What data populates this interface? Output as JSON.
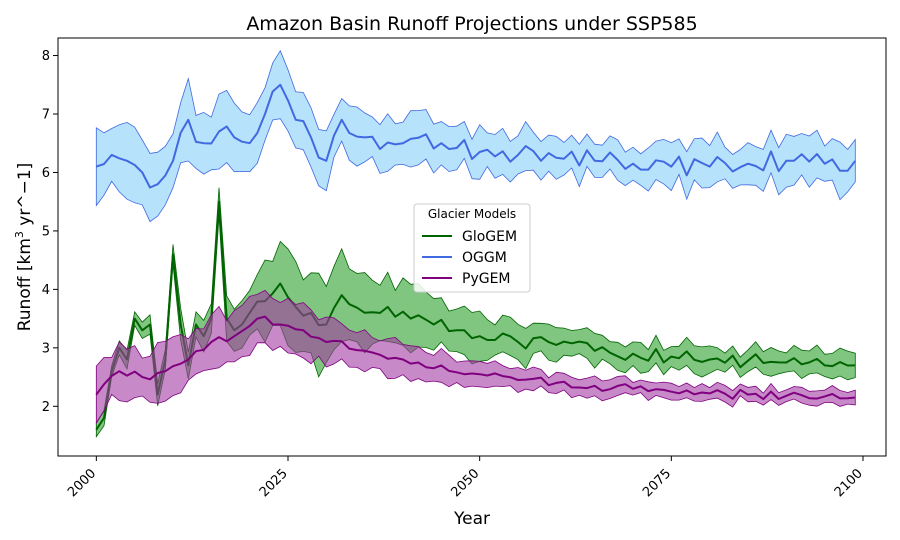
{
  "chart_data": {
    "type": "line",
    "title": "Amazon Basin Runoff Projections under SSP585",
    "xlabel": "Year",
    "ylabel_prefix": "Runoff [km",
    "ylabel_sup": "3",
    "ylabel_suffix": " yr^−1]",
    "xlim": [
      1995,
      2103
    ],
    "ylim": [
      1.15,
      8.3
    ],
    "xticks": [
      2000,
      2025,
      2050,
      2075,
      2100
    ],
    "xtick_labels": [
      "2000",
      "2025",
      "2050",
      "2075",
      "2100"
    ],
    "yticks": [
      2,
      3,
      4,
      5,
      6,
      7,
      8
    ],
    "ytick_labels": [
      "2",
      "3",
      "4",
      "5",
      "6",
      "7",
      "8"
    ],
    "grid": false,
    "legend": {
      "title": "Glacier Models",
      "placement": "center",
      "entries": [
        "GloGEM",
        "OGGM",
        "PyGEM"
      ]
    },
    "x_start": 2000,
    "x_end": 2099,
    "series": [
      {
        "name": "GloGEM",
        "color": "#006400",
        "fill": "#2ca02c",
        "keyframes": [
          [
            2000,
            1.6
          ],
          [
            2001,
            1.8
          ],
          [
            2002,
            2.6
          ],
          [
            2003,
            3.0
          ],
          [
            2004,
            2.8
          ],
          [
            2005,
            3.5
          ],
          [
            2006,
            3.3
          ],
          [
            2007,
            3.4
          ],
          [
            2008,
            2.2
          ],
          [
            2009,
            2.8
          ],
          [
            2010,
            4.6
          ],
          [
            2011,
            3.4
          ],
          [
            2012,
            2.7
          ],
          [
            2013,
            3.4
          ],
          [
            2014,
            3.2
          ],
          [
            2015,
            3.5
          ],
          [
            2016,
            5.5
          ],
          [
            2017,
            3.5
          ],
          [
            2018,
            3.3
          ],
          [
            2019,
            3.4
          ],
          [
            2020,
            3.6
          ],
          [
            2022,
            3.8
          ],
          [
            2024,
            4.1
          ],
          [
            2026,
            3.7
          ],
          [
            2028,
            3.6
          ],
          [
            2030,
            3.4
          ],
          [
            2032,
            3.9
          ],
          [
            2035,
            3.6
          ],
          [
            2038,
            3.7
          ],
          [
            2041,
            3.5
          ],
          [
            2044,
            3.4
          ],
          [
            2047,
            3.3
          ],
          [
            2050,
            3.2
          ],
          [
            2055,
            3.1
          ],
          [
            2060,
            3.05
          ],
          [
            2065,
            2.95
          ],
          [
            2070,
            2.9
          ],
          [
            2075,
            2.85
          ],
          [
            2080,
            2.8
          ],
          [
            2085,
            2.78
          ],
          [
            2090,
            2.75
          ],
          [
            2095,
            2.7
          ],
          [
            2099,
            2.7
          ]
        ],
        "spread": [
          [
            2000,
            0.1
          ],
          [
            2006,
            0.15
          ],
          [
            2016,
            0.3
          ],
          [
            2020,
            0.5
          ],
          [
            2025,
            0.75
          ],
          [
            2030,
            0.7
          ],
          [
            2040,
            0.5
          ],
          [
            2050,
            0.35
          ],
          [
            2060,
            0.28
          ],
          [
            2075,
            0.22
          ],
          [
            2099,
            0.2
          ]
        ]
      },
      {
        "name": "OGGM",
        "color": "#4169e1",
        "fill": "#87cefa",
        "keyframes": [
          [
            2000,
            6.1
          ],
          [
            2002,
            6.3
          ],
          [
            2004,
            6.2
          ],
          [
            2006,
            6.0
          ],
          [
            2008,
            5.8
          ],
          [
            2010,
            6.2
          ],
          [
            2012,
            6.9
          ],
          [
            2014,
            6.5
          ],
          [
            2016,
            6.7
          ],
          [
            2018,
            6.6
          ],
          [
            2020,
            6.5
          ],
          [
            2022,
            7.0
          ],
          [
            2024,
            7.5
          ],
          [
            2026,
            6.9
          ],
          [
            2028,
            6.6
          ],
          [
            2030,
            6.2
          ],
          [
            2032,
            6.9
          ],
          [
            2035,
            6.6
          ],
          [
            2040,
            6.5
          ],
          [
            2045,
            6.5
          ],
          [
            2050,
            6.35
          ],
          [
            2055,
            6.3
          ],
          [
            2060,
            6.25
          ],
          [
            2065,
            6.2
          ],
          [
            2070,
            6.15
          ],
          [
            2075,
            6.1
          ],
          [
            2080,
            6.1
          ],
          [
            2085,
            6.15
          ],
          [
            2090,
            6.2
          ],
          [
            2095,
            6.15
          ],
          [
            2099,
            6.2
          ]
        ],
        "spread": [
          [
            2000,
            0.55
          ],
          [
            2010,
            0.6
          ],
          [
            2020,
            0.55
          ],
          [
            2025,
            0.5
          ],
          [
            2040,
            0.4
          ],
          [
            2060,
            0.35
          ],
          [
            2080,
            0.35
          ],
          [
            2099,
            0.4
          ]
        ]
      },
      {
        "name": "PyGEM",
        "color": "#800080",
        "fill": "#a23ba2",
        "keyframes": [
          [
            2000,
            2.2
          ],
          [
            2003,
            2.6
          ],
          [
            2006,
            2.5
          ],
          [
            2009,
            2.6
          ],
          [
            2012,
            2.8
          ],
          [
            2015,
            3.1
          ],
          [
            2018,
            3.2
          ],
          [
            2021,
            3.5
          ],
          [
            2024,
            3.4
          ],
          [
            2027,
            3.3
          ],
          [
            2030,
            3.1
          ],
          [
            2035,
            2.95
          ],
          [
            2040,
            2.8
          ],
          [
            2045,
            2.7
          ],
          [
            2050,
            2.55
          ],
          [
            2055,
            2.45
          ],
          [
            2060,
            2.4
          ],
          [
            2065,
            2.35
          ],
          [
            2070,
            2.3
          ],
          [
            2075,
            2.25
          ],
          [
            2080,
            2.22
          ],
          [
            2085,
            2.2
          ],
          [
            2090,
            2.18
          ],
          [
            2095,
            2.17
          ],
          [
            2099,
            2.15
          ]
        ],
        "spread": [
          [
            2000,
            0.4
          ],
          [
            2010,
            0.45
          ],
          [
            2020,
            0.45
          ],
          [
            2030,
            0.35
          ],
          [
            2040,
            0.28
          ],
          [
            2050,
            0.2
          ],
          [
            2060,
            0.15
          ],
          [
            2080,
            0.12
          ],
          [
            2099,
            0.12
          ]
        ]
      }
    ]
  }
}
